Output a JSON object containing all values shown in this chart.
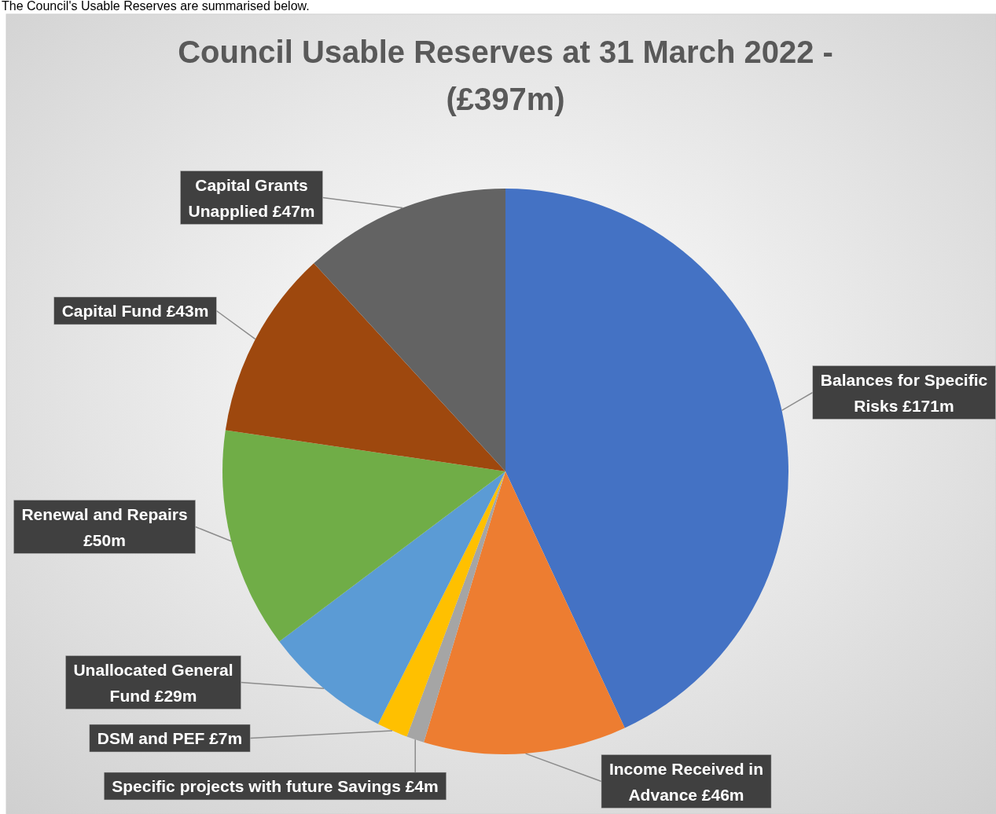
{
  "chart_data": {
    "type": "pie",
    "title": "Council Usable Reserves at 31 March 2022 - (£397m)",
    "annotations": [
      "The Council's Usable Reserves are summarised below."
    ],
    "categories": [
      "Balances for Specific Risks",
      "Income Received in Advance",
      "Specific projects with future Savings",
      "DSM and PEF",
      "Unallocated General Fund",
      "Renewal and Repairs",
      "Capital Fund",
      "Capital Grants Unapplied"
    ],
    "values": [
      171,
      46,
      4,
      7,
      29,
      50,
      43,
      47
    ],
    "value_labels": [
      "£171m",
      "£46m",
      "£4m",
      "£7m",
      "£29m",
      "£50m",
      "£43m",
      "£47m"
    ],
    "colors": [
      "#4472c4",
      "#ed7d31",
      "#a5a5a5",
      "#ffc000",
      "#5b9bd5",
      "#70ad47",
      "#9e480e",
      "#636363"
    ],
    "legend": false
  }
}
